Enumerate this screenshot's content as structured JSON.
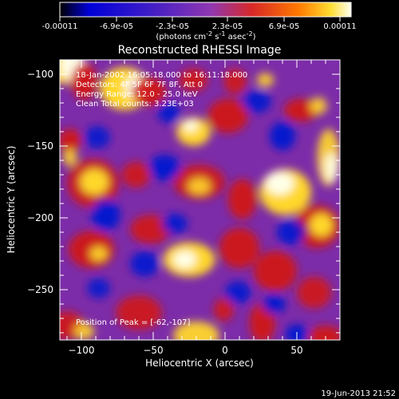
{
  "chart_data": {
    "type": "heatmap",
    "title": "Reconstructed RHESSI Image",
    "xlabel": "Heliocentric X (arcsec)",
    "ylabel": "Heliocentric Y (arcsec)",
    "xlim": [
      -115,
      80
    ],
    "ylim": [
      -285,
      -90
    ],
    "x_ticks": [
      -100,
      -50,
      0,
      50
    ],
    "y_ticks": [
      -100,
      -150,
      -200,
      -250
    ],
    "colorbar": {
      "label_parts": [
        "(photons cm",
        "-2",
        " s",
        "-1",
        " asec",
        "-2",
        ")"
      ],
      "tick_labels": [
        "-0.00011",
        "-6.9e-05",
        "-2.3e-05",
        "2.3e-05",
        "6.9e-05",
        "0.00011"
      ],
      "range": [
        -0.00011,
        0.00011
      ]
    },
    "annotations": [
      "18-Jan-2002 16:05:18.000 to 16:11:18.000",
      "Detectors: 4F 5F 6F 7F 8F, Att 0",
      "Energy Range: 12.0 - 25.0 keV",
      "Clean    Total counts: 3.23E+03"
    ],
    "peak_text": "Position of Peak = [-62,-107]",
    "colors": {
      "background": "#000000",
      "negative": "#0018d0",
      "neutral": "#7c2ca8",
      "positive_mid": "#d01818",
      "positive_high": "#ffd72a",
      "positive_max": "#ffffe8"
    },
    "grid": false
  },
  "footer": {
    "timestamp": "19-Jun-2013 21:52"
  }
}
